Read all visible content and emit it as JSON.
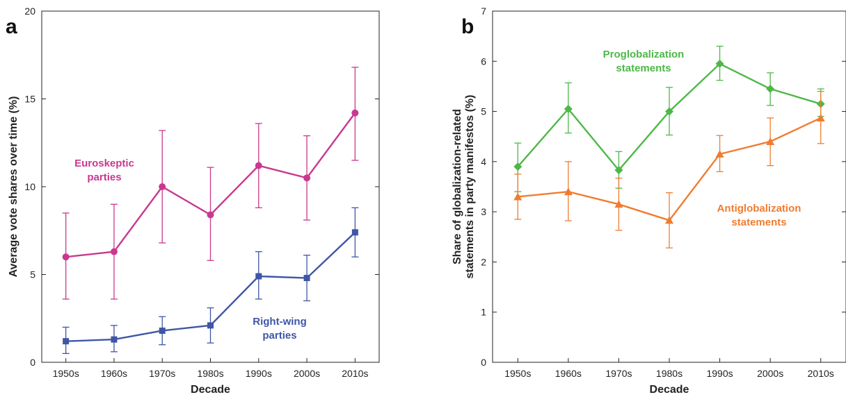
{
  "chart_data": [
    {
      "type": "line",
      "panel": "a",
      "xlabel": "Decade",
      "ylabel": "Average vote shares over time (%)",
      "categories": [
        "1950s",
        "1960s",
        "1970s",
        "1980s",
        "1990s",
        "2000s",
        "2010s"
      ],
      "ylim": [
        0,
        20
      ],
      "yticks": [
        0,
        5,
        10,
        15,
        20
      ],
      "grid": false,
      "series": [
        {
          "name": "Euroskeptic parties",
          "label_lines": [
            "Euroskeptic",
            "parties"
          ],
          "color": "#c9388f",
          "marker": "circle",
          "values": [
            6.0,
            6.3,
            10.0,
            8.4,
            11.2,
            10.5,
            14.2
          ],
          "err_low": [
            3.6,
            3.6,
            6.8,
            5.8,
            8.8,
            8.1,
            11.5
          ],
          "err_high": [
            8.5,
            9.0,
            13.2,
            11.1,
            13.6,
            12.9,
            16.8
          ]
        },
        {
          "name": "Right-wing parties",
          "label_lines": [
            "Right-wing",
            "parties"
          ],
          "color": "#3e56a6",
          "marker": "square",
          "values": [
            1.2,
            1.3,
            1.8,
            2.1,
            4.9,
            4.8,
            7.4
          ],
          "err_low": [
            0.5,
            0.6,
            1.0,
            1.1,
            3.6,
            3.5,
            6.0
          ],
          "err_high": [
            2.0,
            2.1,
            2.6,
            3.1,
            6.3,
            6.1,
            8.8
          ]
        }
      ]
    },
    {
      "type": "line",
      "panel": "b",
      "xlabel": "Decade",
      "ylabel": "Share of globalization-related statements in party manifestos (%)",
      "ylabel_lines": [
        "Share of globalization-related",
        "statements in party manifestos (%)"
      ],
      "categories": [
        "1950s",
        "1960s",
        "1970s",
        "1980s",
        "1990s",
        "2000s",
        "2010s"
      ],
      "ylim": [
        0,
        7
      ],
      "yticks": [
        0,
        1,
        2,
        3,
        4,
        5,
        6,
        7
      ],
      "grid": false,
      "series": [
        {
          "name": "Proglobalization statements",
          "label_lines": [
            "Proglobalization",
            "statements"
          ],
          "color": "#4db848",
          "marker": "diamond",
          "values": [
            3.9,
            5.05,
            3.83,
            5.0,
            5.95,
            5.45,
            5.15
          ],
          "err_low": [
            3.4,
            4.57,
            3.47,
            4.53,
            5.62,
            5.12,
            4.9
          ],
          "err_high": [
            4.37,
            5.57,
            4.2,
            5.48,
            6.3,
            5.77,
            5.45
          ]
        },
        {
          "name": "Antiglobalization statements",
          "label_lines": [
            "Antiglobalization",
            "statements"
          ],
          "color": "#f07c30",
          "marker": "triangle",
          "values": [
            3.3,
            3.4,
            3.15,
            2.83,
            4.15,
            4.4,
            4.87
          ],
          "err_low": [
            2.85,
            2.82,
            2.63,
            2.28,
            3.8,
            3.92,
            4.36
          ],
          "err_high": [
            3.75,
            4.0,
            3.67,
            3.38,
            4.52,
            4.87,
            5.4
          ]
        }
      ]
    }
  ]
}
